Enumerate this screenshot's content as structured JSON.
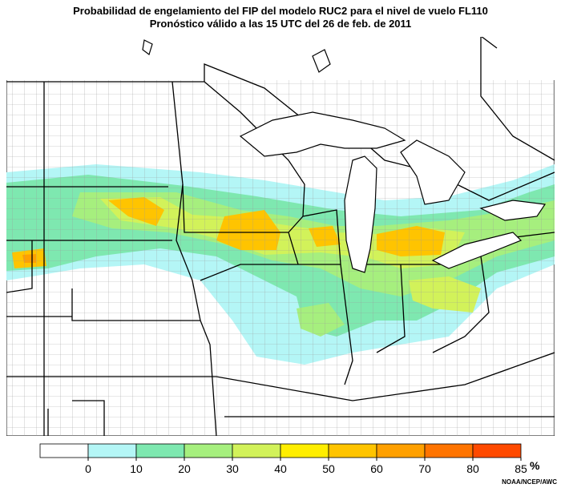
{
  "title": "Probabilidad de engelamiento del FIP del modelo RUC2 para el nivel de vuelo FL110",
  "subtitle": "Pronóstico válido a las 15 UTC del 26 de feb. de 2011",
  "legend": {
    "ticks": [
      0,
      10,
      20,
      30,
      40,
      50,
      60,
      70,
      80,
      85
    ],
    "unit": "%",
    "colors": [
      "#ffffff",
      "#b4f6f6",
      "#7ee8b0",
      "#a6ef7e",
      "#d2f25a",
      "#ffee00",
      "#ffc400",
      "#ffa000",
      "#ff7400",
      "#ff4a00"
    ]
  },
  "credit": "NOAA/NCEP/AWC"
}
